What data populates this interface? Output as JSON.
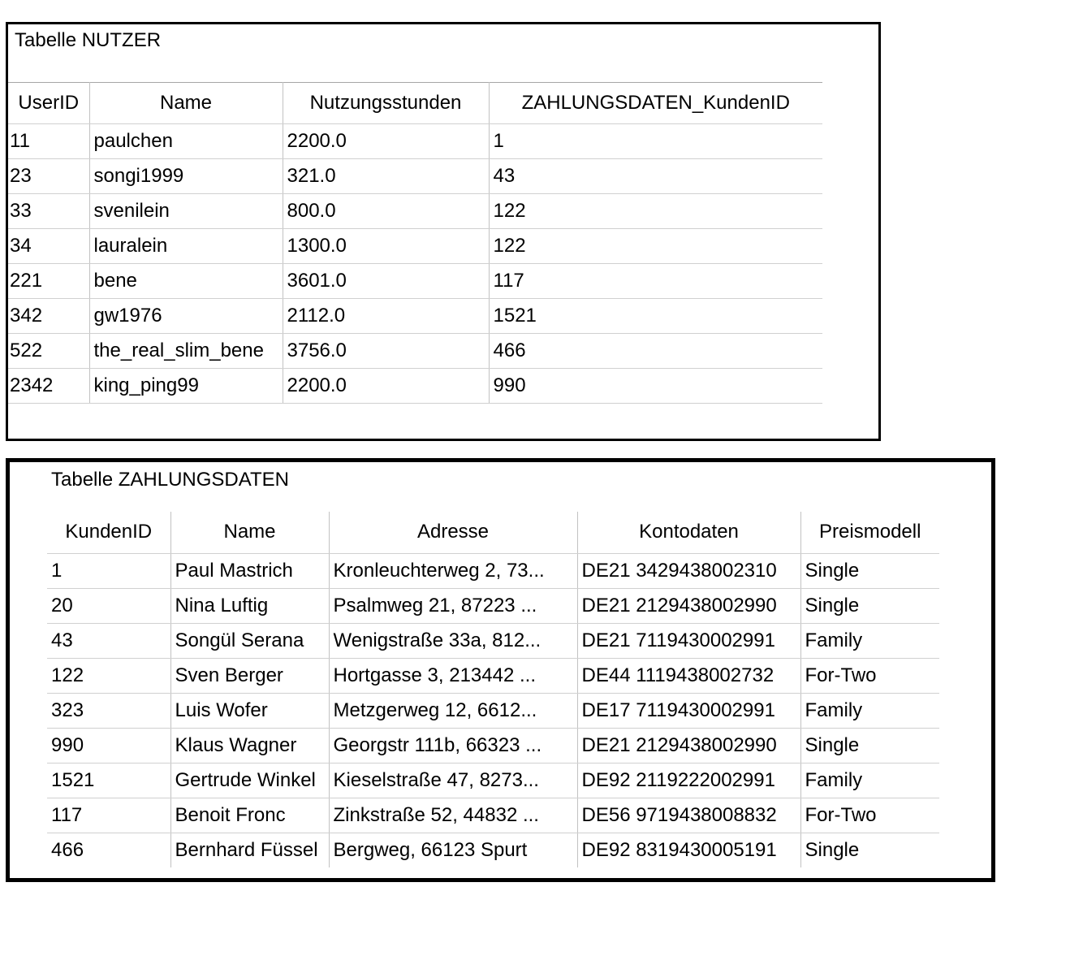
{
  "panels": {
    "nutzer": {
      "title": "Tabelle NUTZER",
      "columns": [
        "UserID",
        "Name",
        "Nutzungsstunden",
        "ZAHLUNGSDATEN_KundenID"
      ],
      "rows": [
        [
          "11",
          "paulchen",
          "2200.0",
          "1"
        ],
        [
          "23",
          "songi1999",
          "321.0",
          "43"
        ],
        [
          "33",
          "svenilein",
          "800.0",
          "122"
        ],
        [
          "34",
          "lauralein",
          "1300.0",
          "122"
        ],
        [
          "221",
          "bene",
          "3601.0",
          "117"
        ],
        [
          "342",
          "gw1976",
          "2112.0",
          "1521"
        ],
        [
          "522",
          "the_real_slim_bene",
          "3756.0",
          "466"
        ],
        [
          "2342",
          "king_ping99",
          "2200.0",
          "990"
        ]
      ]
    },
    "zahlungsdaten": {
      "title": "Tabelle ZAHLUNGSDATEN",
      "columns": [
        "KundenID",
        "Name",
        "Adresse",
        "Kontodaten",
        "Preismodell"
      ],
      "rows": [
        [
          "1",
          "Paul Mastrich",
          "Kronleuchterweg 2, 73...",
          "DE21 3429438002310",
          "Single"
        ],
        [
          "20",
          "Nina Luftig",
          "Psalmweg 21, 87223 ...",
          "DE21 2129438002990",
          "Single"
        ],
        [
          "43",
          "Songül Serana",
          "Wenigstraße 33a, 812...",
          "DE21 7119430002991",
          "Family"
        ],
        [
          "122",
          "Sven Berger",
          "Hortgasse 3, 213442 ...",
          "DE44 1119438002732",
          "For-Two"
        ],
        [
          "323",
          "Luis Wofer",
          "Metzgerweg 12, 6612...",
          "DE17 7119430002991",
          "Family"
        ],
        [
          "990",
          "Klaus Wagner",
          "Georgstr 111b, 66323 ...",
          "DE21 2129438002990",
          "Single"
        ],
        [
          "1521",
          "Gertrude Winkel",
          "Kieselstraße 47, 8273...",
          "DE92 2119222002991",
          "Family"
        ],
        [
          "117",
          "Benoit Fronc",
          "Zinkstraße 52, 44832 ...",
          "DE56 9719438008832",
          "For-Two"
        ],
        [
          "466",
          "Bernhard Füssel",
          "Bergweg, 66123 Spurt",
          "DE92 8319430005191",
          "Single"
        ]
      ]
    }
  },
  "colors": {
    "background": "#ffffff",
    "text": "#000000",
    "panel_border": "#000000",
    "grid_line_vertical": "#c2c2c2",
    "grid_line_horizontal": "#d0d0d0",
    "header_top_rule": "#a6a6a6"
  }
}
